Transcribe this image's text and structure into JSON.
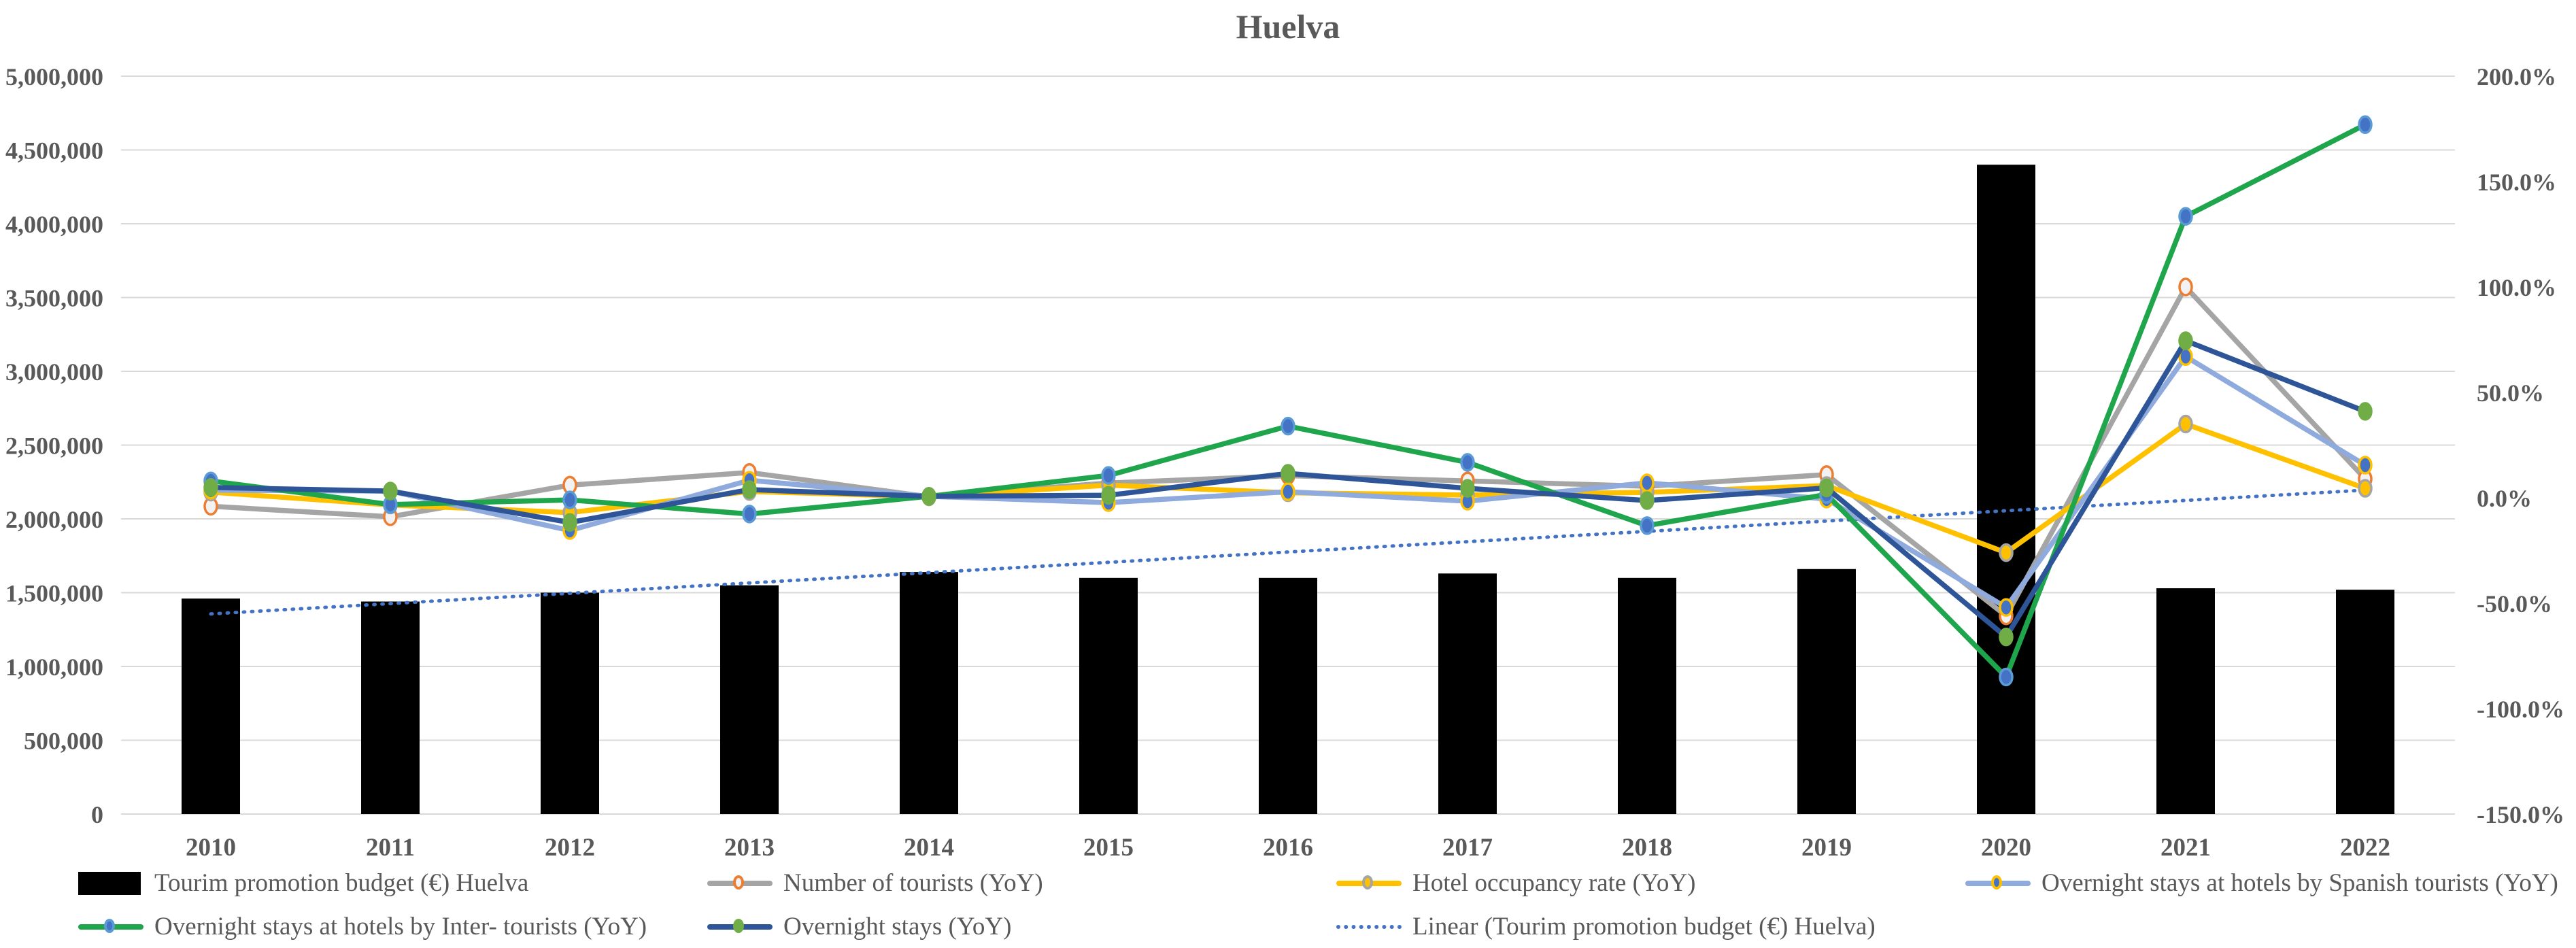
{
  "title": "Huelva",
  "chart_data": {
    "type": "bar",
    "subtype": "combo bar + line, dual axis",
    "title": "Huelva",
    "categories": [
      "2010",
      "2011",
      "2012",
      "2013",
      "2014",
      "2015",
      "2016",
      "2017",
      "2018",
      "2019",
      "2020",
      "2021",
      "2022"
    ],
    "left_axis": {
      "min": 0,
      "max": 5000000,
      "step": 500000,
      "tick_labels": [
        "5,000,000",
        "4,500,000",
        "4,000,000",
        "3,500,000",
        "3,000,000",
        "2,500,000",
        "2,000,000",
        "1,500,000",
        "1,000,000",
        "500,000",
        "0"
      ]
    },
    "right_axis": {
      "min": -150,
      "max": 200,
      "step": 50,
      "tick_labels": [
        "200.0%",
        "150.0%",
        "100.0%",
        "50.0%",
        "0.0%",
        "-50.0%",
        "-100.0%",
        "-150.0%"
      ]
    },
    "grid": true,
    "legend_position": "bottom",
    "bar_series": {
      "name": "Tourim promotion budget (€) Huelva",
      "color": "#000000",
      "axis": "left",
      "values": [
        1460000,
        1440000,
        1500000,
        1550000,
        1640000,
        1600000,
        1600000,
        1630000,
        1600000,
        1660000,
        4400000,
        1530000,
        1520000
      ]
    },
    "line_series": [
      {
        "name": "Number of tourists (YoY)",
        "axis": "right",
        "color": "#A5A5A5",
        "marker_fill": "#F2F2F2",
        "marker_stroke": "#ED7D31",
        "values_pct": [
          -4,
          -9,
          6,
          12,
          0.5,
          7,
          10.5,
          8,
          5.5,
          11,
          -56,
          100,
          9
        ]
      },
      {
        "name": "Hotel occupancy rate (YoY)",
        "axis": "right",
        "color": "#FFC000",
        "marker_fill": "#FFC000",
        "marker_stroke": "#A5A5A5",
        "values_pct": [
          2.7,
          -3.4,
          -7,
          3,
          0.5,
          6,
          2.4,
          1.3,
          2.6,
          5.8,
          -26,
          35,
          4.5
        ]
      },
      {
        "name": "Overnight stays at hotels by Spanish tourists (YoY)",
        "axis": "right",
        "color": "#8FAADC",
        "marker_fill": "#4472C4",
        "marker_stroke": "#FFC000",
        "values_pct": [
          3.6,
          3.2,
          -15.5,
          8.3,
          0.7,
          -2.3,
          2.9,
          -1.6,
          7.1,
          -0.6,
          -52,
          67,
          15.5
        ]
      },
      {
        "name": "Overnight stays at hotels by Inter- tourists (YoY)",
        "axis": "right",
        "color": "#1FA54C",
        "marker_fill": "#4472C4",
        "marker_stroke": "#5B9BD5",
        "values_pct": [
          8,
          -3.2,
          -1,
          -7.7,
          0.7,
          10.6,
          34,
          16.8,
          -13.2,
          1.6,
          -85,
          133.5,
          177
        ]
      },
      {
        "name": "Overnight stays (YoY)",
        "axis": "right",
        "color": "#2E5597",
        "marker_fill": "#70AD47",
        "marker_stroke": "#70AD47",
        "values_pct": [
          4.9,
          3.2,
          -11.7,
          3.9,
          0.7,
          1.2,
          11.6,
          4.5,
          -1.3,
          4.7,
          -66,
          74.5,
          41
        ]
      }
    ],
    "trendline": {
      "name": "Linear (Tourim promotion budget (€) Huelva)",
      "color": "#4472C4",
      "style": "dotted",
      "axis": "left",
      "start_value": 1356000,
      "end_value": 2195000
    },
    "colors": {
      "gridline": "#D9D9D9",
      "text": "#595959"
    }
  }
}
